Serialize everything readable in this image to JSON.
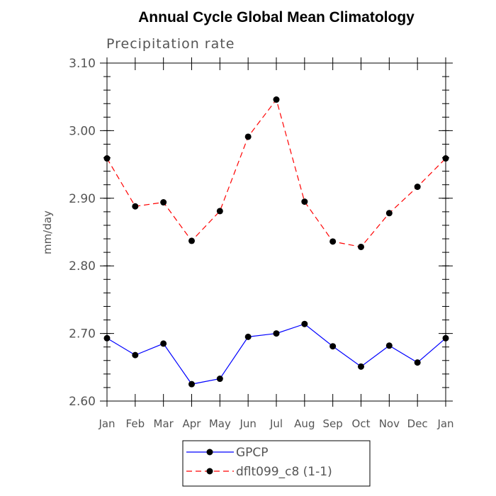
{
  "chart_data": {
    "type": "line",
    "title": "Annual Cycle Global Mean Climatology",
    "subtitle": "Precipitation rate",
    "ylabel": "mm/day",
    "xlabel": "",
    "categories": [
      "Jan",
      "Feb",
      "Mar",
      "Apr",
      "May",
      "Jun",
      "Jul",
      "Aug",
      "Sep",
      "Oct",
      "Nov",
      "Dec",
      "Jan"
    ],
    "ylim": [
      2.6,
      3.1
    ],
    "yticks": [
      "2.60",
      "2.70",
      "2.80",
      "2.90",
      "3.00",
      "3.10"
    ],
    "y_minor_step": 0.02,
    "grid": false,
    "legend_position": "bottom-center",
    "series": [
      {
        "name": "GPCP",
        "color": "#0000ff",
        "dash": "solid",
        "values": [
          2.693,
          2.668,
          2.685,
          2.625,
          2.633,
          2.695,
          2.7,
          2.714,
          2.681,
          2.651,
          2.682,
          2.657,
          2.693
        ]
      },
      {
        "name": "dflt099_c8 (1-1)",
        "color": "#ff0000",
        "dash": "dashed",
        "values": [
          2.959,
          2.888,
          2.894,
          2.837,
          2.881,
          2.991,
          3.046,
          2.895,
          2.836,
          2.828,
          2.878,
          2.917,
          2.959
        ]
      }
    ]
  }
}
